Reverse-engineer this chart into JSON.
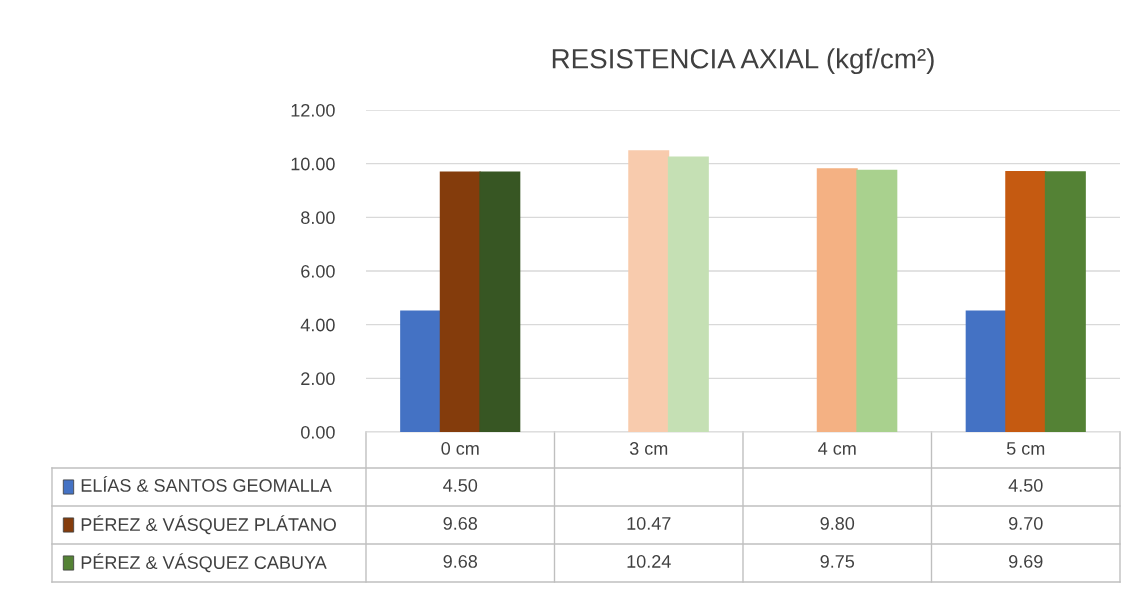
{
  "chart_data": {
    "type": "bar",
    "title": "RESISTENCIA AXIAL (kgf/cm²)",
    "categories": [
      "0 cm",
      "3 cm",
      "4 cm",
      "5 cm"
    ],
    "series": [
      {
        "name": "ELÍAS & SANTOS GEOMALLA",
        "color": "#4472c4",
        "colors": [
          "#4472c4",
          null,
          null,
          "#4472c4"
        ],
        "values": [
          4.5,
          null,
          null,
          4.5
        ],
        "value_labels": [
          "4.50",
          null,
          null,
          "4.50"
        ]
      },
      {
        "name": "PÉREZ & VÁSQUEZ PLÁTANO",
        "color": "#843c0c",
        "colors": [
          "#843c0c",
          "#f8cbad",
          "#f4b183",
          "#c55a11"
        ],
        "values": [
          9.68,
          10.47,
          9.8,
          9.7
        ],
        "value_labels": [
          "9.68",
          "10.47",
          "9.80",
          "9.70"
        ]
      },
      {
        "name": "PÉREZ & VÁSQUEZ CABUYA",
        "color": "#548235",
        "colors": [
          "#375623",
          "#c5e0b4",
          "#a9d18e",
          "#548235"
        ],
        "values": [
          9.68,
          10.24,
          9.75,
          9.69
        ],
        "value_labels": [
          "9.68",
          "10.24",
          "9.75",
          "9.69"
        ]
      }
    ],
    "ylim": [
      0,
      12
    ],
    "yticks": [
      {
        "value": 0,
        "label": "0.00"
      },
      {
        "value": 2,
        "label": "2.00"
      },
      {
        "value": 4,
        "label": "4.00"
      },
      {
        "value": 6,
        "label": "6.00"
      },
      {
        "value": 8,
        "label": "8.00"
      },
      {
        "value": 10,
        "label": "10.00"
      },
      {
        "value": 12,
        "label": "12.00"
      }
    ],
    "grid": "y",
    "legend": "bottom"
  }
}
